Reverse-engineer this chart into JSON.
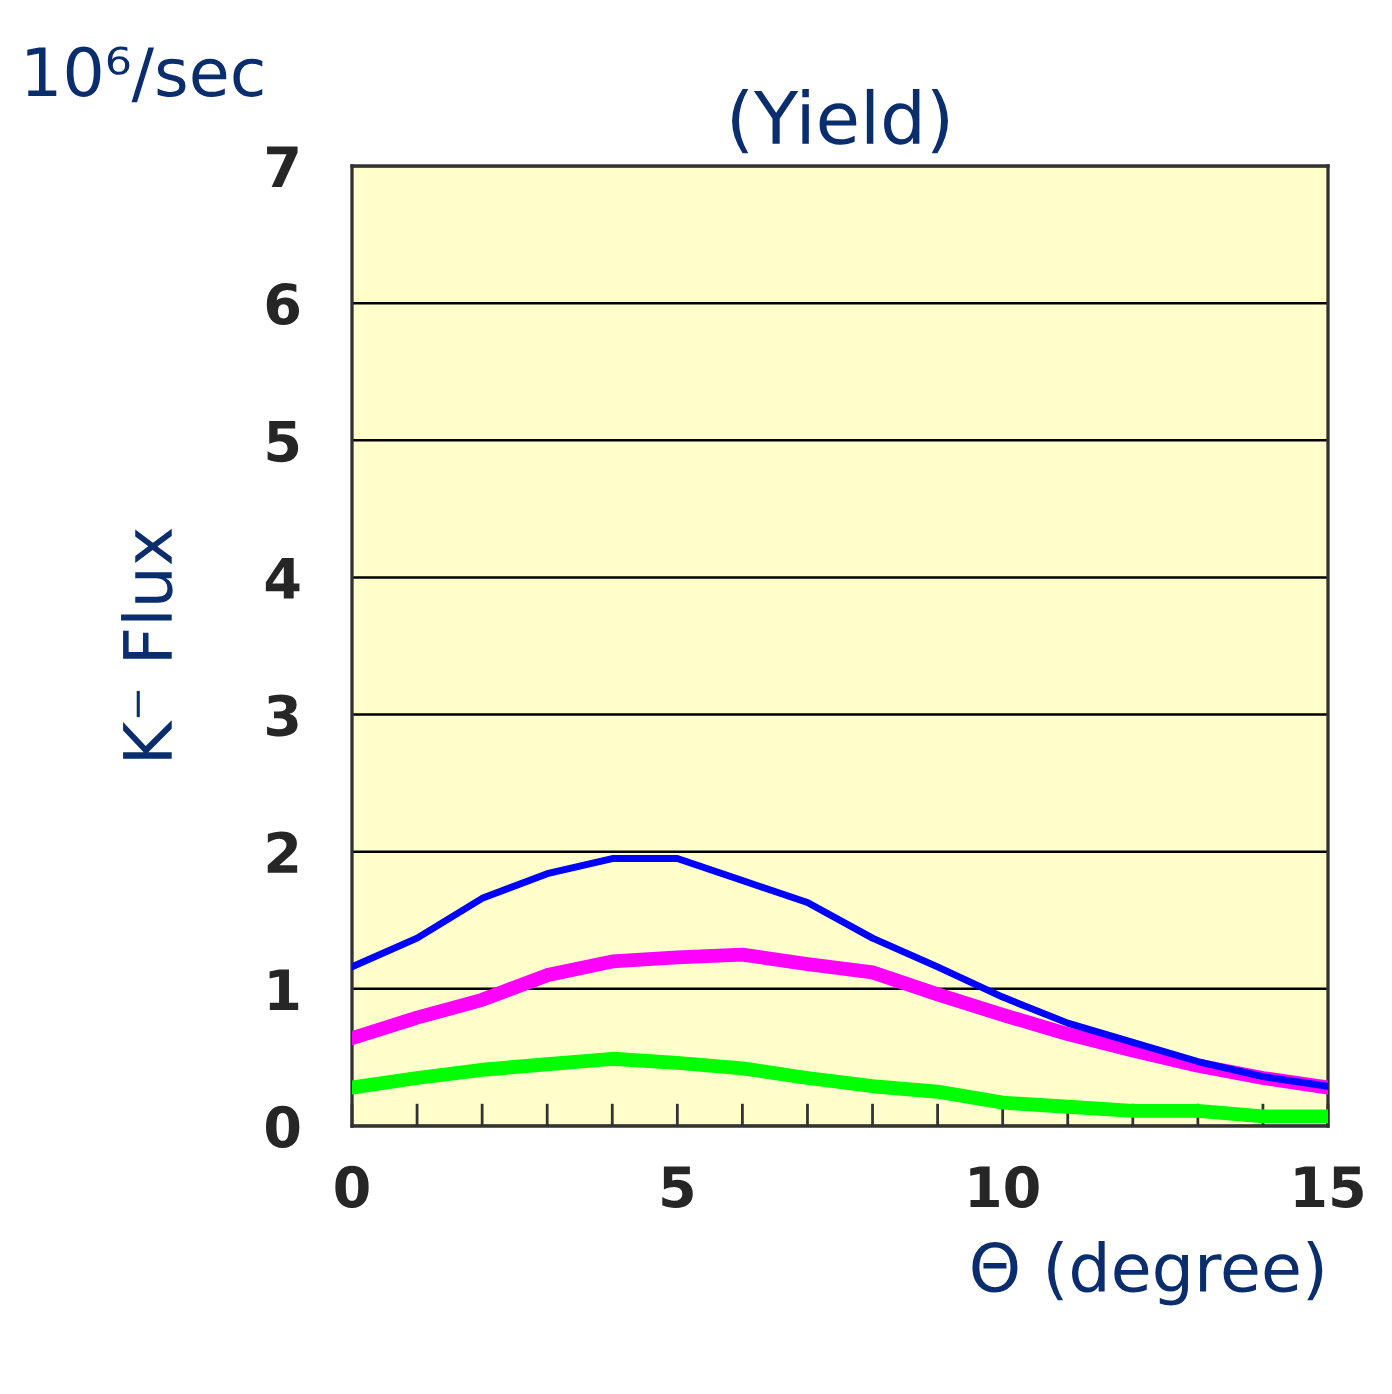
{
  "chart_data": {
    "type": "line",
    "title": "(Yield)",
    "xlabel": "Θ (degree)",
    "ylabel": "K⁻ Flux",
    "annotations": [
      "10⁶/sec"
    ],
    "x": [
      0,
      1,
      2,
      3,
      4,
      5,
      6,
      7,
      8,
      9,
      10,
      11,
      12,
      13,
      14,
      15
    ],
    "series": [
      {
        "color": "#0000ff",
        "values": [
          1.16,
          1.37,
          1.66,
          1.84,
          1.95,
          1.95,
          1.79,
          1.63,
          1.37,
          1.16,
          0.94,
          0.75,
          0.61,
          0.47,
          0.36,
          0.29
        ]
      },
      {
        "color": "#ff00ff",
        "values": [
          0.64,
          0.79,
          0.92,
          1.1,
          1.2,
          1.23,
          1.25,
          1.18,
          1.12,
          0.96,
          0.81,
          0.67,
          0.55,
          0.44,
          0.35,
          0.28
        ]
      },
      {
        "color": "#00ff00",
        "values": [
          0.28,
          0.35,
          0.41,
          0.45,
          0.49,
          0.46,
          0.42,
          0.35,
          0.29,
          0.25,
          0.17,
          0.14,
          0.11,
          0.11,
          0.07,
          0.07
        ]
      }
    ],
    "xlim": [
      0,
      15
    ],
    "ylim": [
      0,
      7
    ],
    "xticks": [
      0,
      {
        "value": 1,
        "label": null
      },
      {
        "value": 2,
        "label": null
      },
      {
        "value": 3,
        "label": null
      },
      {
        "value": 4,
        "label": null
      },
      5,
      {
        "value": 6,
        "label": null
      },
      {
        "value": 7,
        "label": null
      },
      {
        "value": 8,
        "label": null
      },
      {
        "value": 9,
        "label": null
      },
      10,
      {
        "value": 11,
        "label": null
      },
      {
        "value": 12,
        "label": null
      },
      {
        "value": 13,
        "label": null
      },
      {
        "value": 14,
        "label": null
      },
      15
    ],
    "yticks": [
      0,
      1,
      2,
      3,
      4,
      5,
      6,
      7
    ],
    "grid": "y",
    "line_style": "solid",
    "marker": "none",
    "legend": false
  }
}
